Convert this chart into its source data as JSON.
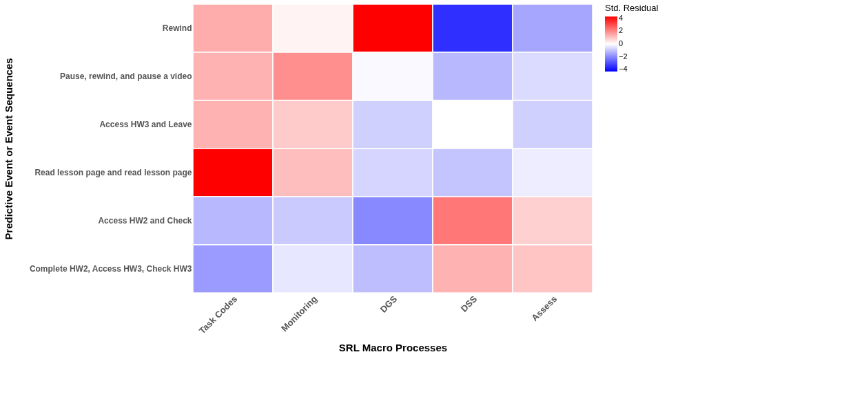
{
  "chart_data": {
    "type": "heatmap",
    "xlabel": "SRL Macro Processes",
    "ylabel": "Predictive Event or Event Sequences",
    "legend_title": "Std. Residual",
    "categories": [
      "Task Codes",
      "Monitoring",
      "DGS",
      "DSS",
      "Assess"
    ],
    "y_categories": [
      "Rewind",
      "Pause, rewind, and pause a video",
      "Access HW3 and Leave",
      "Read lesson page and read lesson page",
      "Access HW2 and Check",
      "Complete HW2, Access HW3, Check HW3"
    ],
    "cells": [
      [
        1.4,
        0.2,
        4.3,
        -3.5,
        -1.5
      ],
      [
        1.3,
        1.9,
        -0.1,
        -1.2,
        -0.6
      ],
      [
        1.3,
        0.9,
        -0.8,
        0.0,
        -0.8
      ],
      [
        4.3,
        1.1,
        -0.7,
        -1.0,
        -0.3
      ],
      [
        -1.2,
        -0.9,
        -2.0,
        2.3,
        0.8
      ],
      [
        -1.7,
        -0.4,
        -1.1,
        1.3,
        1.0
      ]
    ],
    "clim": [
      -4.3,
      4.3
    ],
    "cticks": [
      -4,
      -2,
      0,
      2,
      4
    ]
  }
}
